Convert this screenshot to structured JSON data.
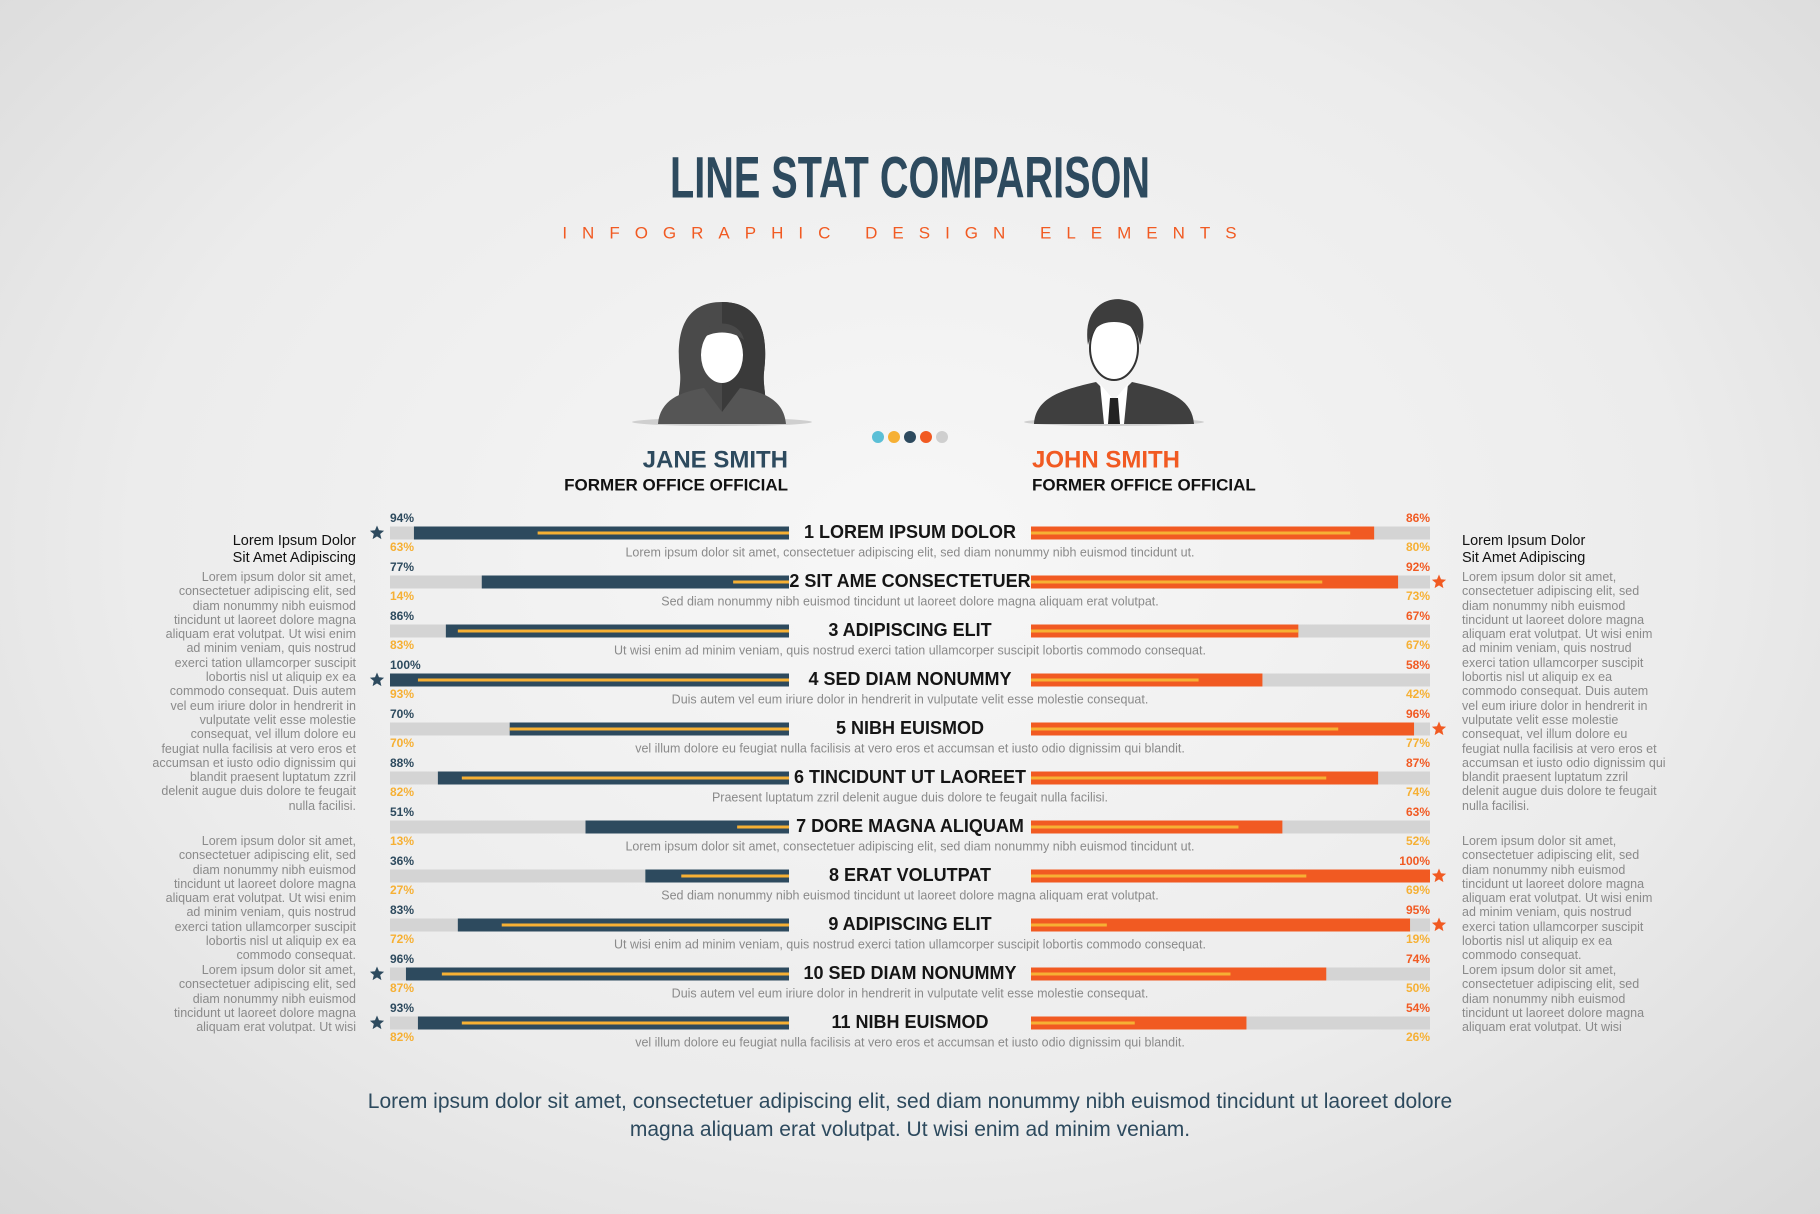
{
  "title": "LINE STAT COMPARISON",
  "subtitle": "INFOGRAPHIC DESIGN ELEMENTS",
  "xlim": [
    0,
    100
  ],
  "sub_color": "#f6b034",
  "track_color": "#d4d4d4",
  "people": [
    {
      "name": "JANE SMITH",
      "role": "FORMER OFFICE OFFICIAL",
      "color": "#2d4a5e"
    },
    {
      "name": "JOHN SMITH",
      "role": "FORMER OFFICE OFFICIAL",
      "color": "#f15a22"
    }
  ],
  "rows": [
    {
      "label": "1 LOREM IPSUM DOLOR",
      "description": "Lorem ipsum dolor sit amet, consectetuer adipiscing elit, sed diam nonummy nibh euismod tincidunt ut.",
      "left": {
        "values": [
          94,
          63
        ],
        "value_labels": [
          "94%",
          "63%"
        ],
        "star": true
      },
      "right": {
        "values": [
          86,
          80
        ],
        "value_labels": [
          "86%",
          "80%"
        ],
        "star": false
      }
    },
    {
      "label": "2 SIT AME CONSECTETUER",
      "description": "Sed diam nonummy nibh euismod tincidunt ut laoreet dolore magna aliquam erat volutpat.",
      "left": {
        "values": [
          77,
          14
        ],
        "value_labels": [
          "77%",
          "14%"
        ],
        "star": false
      },
      "right": {
        "values": [
          92,
          73
        ],
        "value_labels": [
          "92%",
          "73%"
        ],
        "star": true
      }
    },
    {
      "label": "3 ADIPISCING ELIT",
      "description": "Ut wisi enim ad minim veniam, quis nostrud exerci tation ullamcorper suscipit lobortis commodo consequat.",
      "left": {
        "values": [
          86,
          83
        ],
        "value_labels": [
          "86%",
          "83%"
        ],
        "star": false
      },
      "right": {
        "values": [
          67,
          67
        ],
        "value_labels": [
          "67%",
          "67%"
        ],
        "star": false
      }
    },
    {
      "label": "4 SED DIAM NONUMMY",
      "description": "Duis autem vel eum iriure dolor in hendrerit in vulputate velit esse molestie consequat.",
      "left": {
        "values": [
          100,
          93
        ],
        "value_labels": [
          "100%",
          "93%"
        ],
        "star": true
      },
      "right": {
        "values": [
          58,
          42
        ],
        "value_labels": [
          "58%",
          "42%"
        ],
        "star": false
      }
    },
    {
      "label": "5 NIBH EUISMOD",
      "description": "vel illum dolore eu feugiat nulla facilisis at vero eros et accumsan et iusto odio dignissim qui blandit.",
      "left": {
        "values": [
          70,
          70
        ],
        "value_labels": [
          "70%",
          "70%"
        ],
        "star": false
      },
      "right": {
        "values": [
          96,
          77
        ],
        "value_labels": [
          "96%",
          "77%"
        ],
        "star": true
      }
    },
    {
      "label": "6 TINCIDUNT UT LAOREET",
      "description": "Praesent luptatum zzril delenit augue duis dolore te feugait nulla facilisi.",
      "left": {
        "values": [
          88,
          82
        ],
        "value_labels": [
          "88%",
          "82%"
        ],
        "star": false
      },
      "right": {
        "values": [
          87,
          74
        ],
        "value_labels": [
          "87%",
          "74%"
        ],
        "star": false
      }
    },
    {
      "label": "7 DORE MAGNA ALIQUAM",
      "description": "Lorem ipsum dolor sit amet, consectetuer adipiscing elit, sed diam nonummy nibh euismod tincidunt ut.",
      "left": {
        "values": [
          51,
          13
        ],
        "value_labels": [
          "51%",
          "13%"
        ],
        "star": false
      },
      "right": {
        "values": [
          63,
          52
        ],
        "value_labels": [
          "63%",
          "52%"
        ],
        "star": false
      }
    },
    {
      "label": "8 ERAT VOLUTPAT",
      "description": "Sed diam nonummy nibh euismod tincidunt ut laoreet dolore magna aliquam erat volutpat.",
      "left": {
        "values": [
          36,
          27
        ],
        "value_labels": [
          "36%",
          "27%"
        ],
        "star": false
      },
      "right": {
        "values": [
          100,
          69
        ],
        "value_labels": [
          "100%",
          "69%"
        ],
        "star": true
      }
    },
    {
      "label": "9 ADIPISCING ELIT",
      "description": "Ut wisi enim ad minim veniam, quis nostrud exerci tation ullamcorper suscipit lobortis commodo consequat.",
      "left": {
        "values": [
          83,
          72
        ],
        "value_labels": [
          "83%",
          "72%"
        ],
        "star": false
      },
      "right": {
        "values": [
          95,
          19
        ],
        "value_labels": [
          "95%",
          "19%"
        ],
        "star": true
      }
    },
    {
      "label": "10 SED DIAM NONUMMY",
      "description": "Duis autem vel eum iriure dolor in hendrerit in vulputate velit esse molestie consequat.",
      "left": {
        "values": [
          96,
          87
        ],
        "value_labels": [
          "96%",
          "87%"
        ],
        "star": true
      },
      "right": {
        "values": [
          74,
          50
        ],
        "value_labels": [
          "74%",
          "50%"
        ],
        "star": false
      }
    },
    {
      "label": "11 NIBH EUISMOD",
      "description": "vel illum dolore eu feugiat nulla facilisis at vero eros et accumsan et iusto odio dignissim qui blandit.",
      "left": {
        "values": [
          93,
          82
        ],
        "value_labels": [
          "93%",
          "82%"
        ],
        "star": true
      },
      "right": {
        "values": [
          54,
          26
        ],
        "value_labels": [
          "54%",
          "26%"
        ],
        "star": false
      }
    }
  ],
  "side_notes": [
    {
      "heading": [
        "Lorem Ipsum Dolor",
        "Sit Amet Adipiscing"
      ],
      "paragraphs": [
        "Lorem ipsum dolor sit amet, consectetuer adipiscing elit, sed diam nonummy nibh euismod tincidunt ut laoreet dolore magna aliquam erat volutpat. Ut wisi enim ad minim veniam, quis nostrud exerci tation ullamcorper suscipit lobortis nisl ut aliquip ex ea commodo consequat. Duis autem vel eum iriure dolor in hendrerit in vulputate velit esse molestie consequat, vel illum dolore eu feugiat nulla facilisis at vero eros et accumsan et iusto odio dignissim qui blandit praesent luptatum zzril delenit augue duis dolore te feugait nulla facilisi.",
        "Lorem ipsum dolor sit amet, consectetuer adipiscing elit, sed diam nonummy nibh euismod tincidunt ut laoreet dolore magna aliquam erat volutpat. Ut wisi enim ad minim veniam, quis nostrud exerci tation ullamcorper suscipit lobortis nisl ut aliquip ex ea commodo consequat.",
        "Lorem ipsum dolor sit amet, consectetuer adipiscing elit, sed diam nonummy nibh euismod tincidunt ut laoreet dolore magna aliquam erat volutpat. Ut wisi"
      ]
    },
    {
      "heading": [
        "Lorem Ipsum Dolor",
        "Sit Amet Adipiscing"
      ],
      "paragraphs": [
        "Lorem ipsum dolor sit amet, consectetuer adipiscing elit, sed diam nonummy nibh euismod tincidunt ut laoreet dolore magna aliquam erat volutpat. Ut wisi enim ad minim veniam, quis nostrud exerci tation ullamcorper suscipit lobortis nisl ut aliquip ex ea commodo consequat. Duis autem vel eum iriure dolor in hendrerit in vulputate velit esse molestie consequat, vel illum dolore eu feugiat nulla facilisis at vero eros et accumsan et iusto odio dignissim qui blandit praesent luptatum zzril delenit augue duis dolore te feugait nulla facilisi.",
        "Lorem ipsum dolor sit amet, consectetuer adipiscing elit, sed diam nonummy nibh euismod tincidunt ut laoreet dolore magna aliquam erat volutpat. Ut wisi enim ad minim veniam, quis nostrud exerci tation ullamcorper suscipit lobortis nisl ut aliquip ex ea commodo consequat.",
        "Lorem ipsum dolor sit amet, consectetuer adipiscing elit, sed diam nonummy nibh euismod tincidunt ut laoreet dolore magna aliquam erat volutpat. Ut wisi"
      ]
    }
  ],
  "footer": "Lorem ipsum dolor sit amet, consectetuer adipiscing elit, sed diam nonummy nibh euismod tincidunt ut laoreet dolore magna aliquam erat volutpat. Ut wisi enim ad minim veniam."
}
